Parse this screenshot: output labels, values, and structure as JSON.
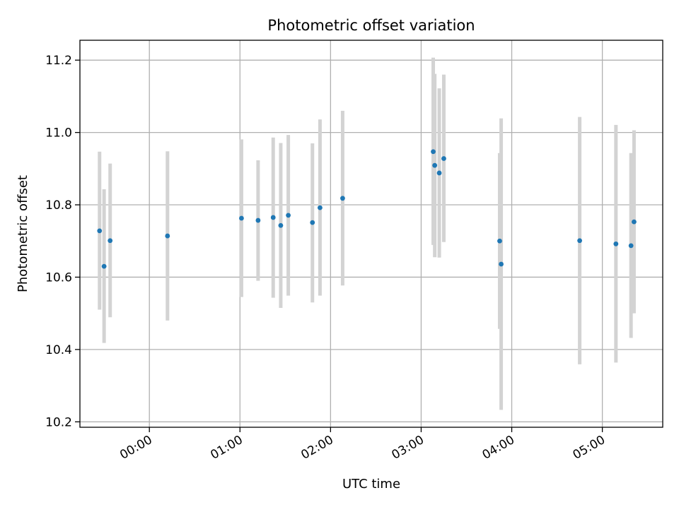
{
  "chart_data": {
    "type": "scatter",
    "title": "Photometric offset variation",
    "xlabel": "UTC time",
    "ylabel": "Photometric offset",
    "x_unit": "UTC time (HH:MM)",
    "xlim": [
      "-00:46",
      "05:40"
    ],
    "ylim": [
      10.185,
      11.255
    ],
    "x_ticks": [
      "00:00",
      "01:00",
      "02:00",
      "03:00",
      "04:00",
      "05:00"
    ],
    "y_ticks": [
      10.2,
      10.4,
      10.6,
      10.8,
      11.0,
      11.2
    ],
    "y_tick_labels": [
      "10.2",
      "10.4",
      "10.6",
      "10.8",
      "11.0",
      "11.2"
    ],
    "x_tick_rotation_deg": 30,
    "grid": true,
    "legend": false,
    "colors": {
      "points": "#1f77b4",
      "errorbars": "#d3d3d3",
      "grid": "#b0b0b0",
      "axes": "#000000"
    },
    "points": [
      {
        "x": "23:27",
        "y": 10.728,
        "lo": 10.51,
        "hi": 10.947
      },
      {
        "x": "23:30",
        "y": 10.63,
        "lo": 10.418,
        "hi": 10.843
      },
      {
        "x": "23:34",
        "y": 10.701,
        "lo": 10.489,
        "hi": 10.914
      },
      {
        "x": "00:12",
        "y": 10.714,
        "lo": 10.48,
        "hi": 10.948
      },
      {
        "x": "01:01",
        "y": 10.763,
        "lo": 10.545,
        "hi": 10.981
      },
      {
        "x": "01:12",
        "y": 10.757,
        "lo": 10.59,
        "hi": 10.923
      },
      {
        "x": "01:22",
        "y": 10.765,
        "lo": 10.543,
        "hi": 10.986
      },
      {
        "x": "01:27",
        "y": 10.743,
        "lo": 10.515,
        "hi": 10.971
      },
      {
        "x": "01:32",
        "y": 10.771,
        "lo": 10.549,
        "hi": 10.993
      },
      {
        "x": "01:48",
        "y": 10.751,
        "lo": 10.53,
        "hi": 10.97
      },
      {
        "x": "01:53",
        "y": 10.792,
        "lo": 10.549,
        "hi": 11.036
      },
      {
        "x": "02:08",
        "y": 10.818,
        "lo": 10.577,
        "hi": 11.06
      },
      {
        "x": "03:08",
        "y": 10.947,
        "lo": 10.689,
        "hi": 11.207
      },
      {
        "x": "03:09",
        "y": 10.909,
        "lo": 10.655,
        "hi": 11.162
      },
      {
        "x": "03:12",
        "y": 10.888,
        "lo": 10.654,
        "hi": 11.122
      },
      {
        "x": "03:15",
        "y": 10.928,
        "lo": 10.697,
        "hi": 11.16
      },
      {
        "x": "03:52",
        "y": 10.7,
        "lo": 10.457,
        "hi": 10.943
      },
      {
        "x": "03:53",
        "y": 10.636,
        "lo": 10.233,
        "hi": 11.039
      },
      {
        "x": "04:45",
        "y": 10.701,
        "lo": 10.359,
        "hi": 11.043
      },
      {
        "x": "05:09",
        "y": 10.692,
        "lo": 10.364,
        "hi": 11.021
      },
      {
        "x": "05:19",
        "y": 10.687,
        "lo": 10.432,
        "hi": 10.943
      },
      {
        "x": "05:21",
        "y": 10.753,
        "lo": 10.5,
        "hi": 11.006
      }
    ]
  }
}
